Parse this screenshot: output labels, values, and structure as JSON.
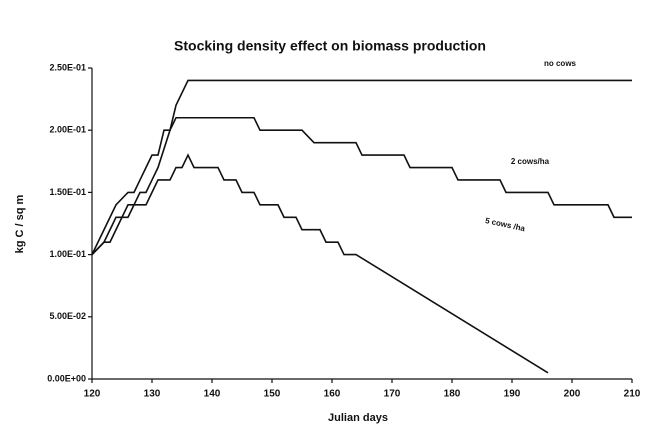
{
  "chart_data": {
    "type": "line",
    "title": "Stocking density effect on biomass production",
    "xlabel": "Julian days",
    "ylabel": "kg C / sq m",
    "xlim": [
      120,
      210
    ],
    "xticks": [
      120,
      130,
      140,
      150,
      160,
      170,
      180,
      190,
      200,
      210
    ],
    "ylim": [
      0,
      0.25
    ],
    "yticks": [
      {
        "value": 0,
        "label": "0.00E+00"
      },
      {
        "value": 0.05,
        "label": "5.00E-02"
      },
      {
        "value": 0.1,
        "label": "1.00E-01"
      },
      {
        "value": 0.15,
        "label": "1.50E-01"
      },
      {
        "value": 0.2,
        "label": "2.00E-01"
      },
      {
        "value": 0.25,
        "label": "2.50E-01"
      }
    ],
    "grid": false,
    "series": [
      {
        "name": "no cows",
        "color": "#111111",
        "x": [
          120,
          122,
          124,
          126,
          127,
          128,
          129,
          130,
          131,
          132,
          133,
          134,
          136,
          210
        ],
        "values": [
          0.1,
          0.12,
          0.14,
          0.15,
          0.15,
          0.16,
          0.17,
          0.18,
          0.18,
          0.2,
          0.2,
          0.22,
          0.24,
          0.24
        ]
      },
      {
        "name": "2 cows/ha",
        "color": "#111111",
        "x": [
          120,
          122,
          123,
          125,
          126,
          127,
          128,
          129,
          130,
          131,
          133,
          134,
          147,
          148,
          155,
          157,
          164,
          165,
          172,
          173,
          180,
          181,
          188,
          189,
          196,
          197,
          206,
          207,
          210
        ],
        "values": [
          0.1,
          0.11,
          0.11,
          0.13,
          0.14,
          0.14,
          0.15,
          0.15,
          0.16,
          0.17,
          0.2,
          0.21,
          0.21,
          0.2,
          0.2,
          0.19,
          0.19,
          0.18,
          0.18,
          0.17,
          0.17,
          0.16,
          0.16,
          0.15,
          0.15,
          0.14,
          0.14,
          0.13,
          0.13
        ]
      },
      {
        "name": "5 cows /ha",
        "color": "#111111",
        "x": [
          120,
          122,
          123,
          124,
          126,
          127,
          129,
          130,
          131,
          133,
          134,
          135,
          136,
          137,
          141,
          142,
          144,
          145,
          147,
          148,
          151,
          152,
          154,
          155,
          158,
          159,
          161,
          162,
          164,
          196
        ],
        "values": [
          0.1,
          0.11,
          0.12,
          0.13,
          0.13,
          0.14,
          0.14,
          0.15,
          0.16,
          0.16,
          0.17,
          0.17,
          0.18,
          0.17,
          0.17,
          0.16,
          0.16,
          0.15,
          0.15,
          0.14,
          0.14,
          0.13,
          0.13,
          0.12,
          0.12,
          0.11,
          0.11,
          0.1,
          0.1,
          0.005
        ]
      }
    ]
  }
}
